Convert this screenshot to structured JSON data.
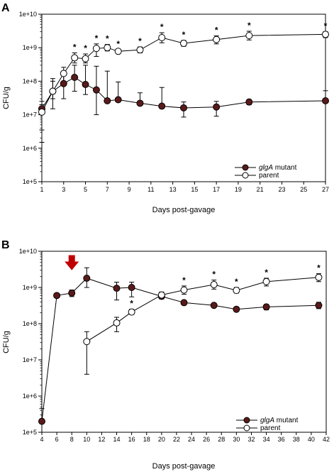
{
  "chart_data": [
    {
      "type": "line",
      "panel": "A",
      "xlabel": "Days post-gavage",
      "ylabel": "CFU/g",
      "yscale": "log",
      "xlim": [
        1,
        27
      ],
      "ylim": [
        100000,
        10000000000
      ],
      "x_ticks": [
        1,
        3,
        5,
        7,
        9,
        11,
        13,
        15,
        17,
        19,
        21,
        23,
        25,
        27
      ],
      "y_ticks": [
        "1e+5",
        "1e+6",
        "1e+7",
        "1e+8",
        "1e+9",
        "1e+10"
      ],
      "legend_position": "bottom-right",
      "grid": false,
      "series": [
        {
          "name": "glgA mutant",
          "name_italic": "glgA",
          "name_rest": " mutant",
          "marker": "filled-circle",
          "color": "#5a1a1a",
          "points": [
            {
              "x": 1,
              "y": 15000000,
              "err_lo": 1500000,
              "err_hi": 25000000
            },
            {
              "x": 2,
              "y": 50000000,
              "err_lo": 15000000,
              "err_hi": 100000000
            },
            {
              "x": 3,
              "y": 85000000,
              "err_lo": 30000000,
              "err_hi": 150000000
            },
            {
              "x": 4,
              "y": 130000000,
              "err_lo": 50000000,
              "err_hi": 300000000
            },
            {
              "x": 5,
              "y": 80000000,
              "err_lo": 40000000,
              "err_hi": 300000000
            },
            {
              "x": 6,
              "y": 55000000,
              "err_lo": 10000000,
              "err_hi": 280000000
            },
            {
              "x": 7,
              "y": 26000000,
              "err_lo": 26000000,
              "err_hi": 200000000
            },
            {
              "x": 8,
              "y": 28000000,
              "err_lo": 28000000,
              "err_hi": 95000000
            },
            {
              "x": 10,
              "y": 22000000,
              "err_lo": 22000000,
              "err_hi": 45000000
            },
            {
              "x": 12,
              "y": 18000000,
              "err_lo": 18000000,
              "err_hi": 65000000
            },
            {
              "x": 14,
              "y": 16000000,
              "err_lo": 8500000,
              "err_hi": 24000000
            },
            {
              "x": 17,
              "y": 17000000,
              "err_lo": 9000000,
              "err_hi": 25000000
            },
            {
              "x": 20,
              "y": 24000000,
              "err_lo": 20000000,
              "err_hi": 28000000
            },
            {
              "x": 27,
              "y": 26000000,
              "err_lo": 26000000,
              "err_hi": 52000000
            }
          ]
        },
        {
          "name": "parent",
          "marker": "open-circle",
          "color": "#000000",
          "points": [
            {
              "x": 1,
              "y": 12000000,
              "err_lo": 3500000,
              "err_hi": 20000000
            },
            {
              "x": 2,
              "y": 50000000,
              "err_lo": 30000000,
              "err_hi": 120000000
            },
            {
              "x": 3,
              "y": 170000000,
              "err_lo": 90000000,
              "err_hi": 260000000
            },
            {
              "x": 4,
              "y": 500000000,
              "err_lo": 350000000,
              "err_hi": 700000000
            },
            {
              "x": 5,
              "y": 470000000,
              "err_lo": 350000000,
              "err_hi": 650000000
            },
            {
              "x": 6,
              "y": 950000000,
              "err_lo": 550000000,
              "err_hi": 1300000000
            },
            {
              "x": 7,
              "y": 1000000000,
              "err_lo": 800000000,
              "err_hi": 1250000000
            },
            {
              "x": 8,
              "y": 780000000,
              "err_lo": 700000000,
              "err_hi": 880000000
            },
            {
              "x": 10,
              "y": 860000000,
              "err_lo": 700000000,
              "err_hi": 1050000000
            },
            {
              "x": 12,
              "y": 2000000000,
              "err_lo": 1400000000,
              "err_hi": 2800000000
            },
            {
              "x": 14,
              "y": 1350000000,
              "err_lo": 1100000000,
              "err_hi": 1650000000
            },
            {
              "x": 17,
              "y": 1750000000,
              "err_lo": 1300000000,
              "err_hi": 2250000000
            },
            {
              "x": 20,
              "y": 2300000000,
              "err_lo": 1700000000,
              "err_hi": 3100000000
            },
            {
              "x": 27,
              "y": 2500000000,
              "err_lo": 2000000000,
              "err_hi": 3000000000
            }
          ]
        }
      ],
      "significance": {
        "symbol": "*",
        "x": [
          4,
          5,
          6,
          7,
          8,
          10,
          12,
          14,
          17,
          20,
          27
        ]
      }
    },
    {
      "type": "line",
      "panel": "B",
      "xlabel": "Days post-gavage",
      "ylabel": "CFU/g",
      "yscale": "log",
      "xlim": [
        4,
        42
      ],
      "ylim": [
        100000,
        10000000000
      ],
      "x_ticks": [
        4,
        6,
        8,
        10,
        12,
        14,
        16,
        18,
        20,
        22,
        24,
        26,
        28,
        30,
        32,
        34,
        36,
        38,
        40,
        42
      ],
      "y_ticks": [
        "1e+5",
        "1e+6",
        "1e+7",
        "1e+8",
        "1e+9",
        "1e+10"
      ],
      "legend_position": "bottom-right",
      "grid": false,
      "arrow": {
        "x": 8,
        "color": "#c00000"
      },
      "series": [
        {
          "name": "glgA mutant",
          "name_italic": "glgA",
          "name_rest": " mutant",
          "marker": "filled-circle",
          "color": "#5a1a1a",
          "points": [
            {
              "x": 4,
              "y": 200000,
              "err_lo": 200000,
              "err_hi": 450000
            },
            {
              "x": 6,
              "y": 600000000,
              "err_lo": 560000000,
              "err_hi": 640000000
            },
            {
              "x": 8,
              "y": 700000000,
              "err_lo": 560000000,
              "err_hi": 850000000
            },
            {
              "x": 10,
              "y": 1800000000,
              "err_lo": 1000000000,
              "err_hi": 3500000000
            },
            {
              "x": 14,
              "y": 950000000,
              "err_lo": 450000000,
              "err_hi": 1400000000
            },
            {
              "x": 16,
              "y": 1000000000,
              "err_lo": 550000000,
              "err_hi": 1400000000
            },
            {
              "x": 20,
              "y": 570000000,
              "err_lo": 480000000,
              "err_hi": 650000000
            },
            {
              "x": 23,
              "y": 380000000,
              "err_lo": 350000000,
              "err_hi": 420000000
            },
            {
              "x": 27,
              "y": 320000000,
              "err_lo": 300000000,
              "err_hi": 340000000
            },
            {
              "x": 30,
              "y": 250000000,
              "err_lo": 240000000,
              "err_hi": 270000000
            },
            {
              "x": 34,
              "y": 290000000,
              "err_lo": 240000000,
              "err_hi": 340000000
            },
            {
              "x": 41,
              "y": 320000000,
              "err_lo": 260000000,
              "err_hi": 390000000
            }
          ]
        },
        {
          "name": "parent",
          "marker": "open-circle",
          "color": "#000000",
          "points": [
            {
              "x": 10,
              "y": 32000000,
              "err_lo": 4000000,
              "err_hi": 60000000
            },
            {
              "x": 14,
              "y": 105000000,
              "err_lo": 60000000,
              "err_hi": 150000000
            },
            {
              "x": 16,
              "y": 210000000,
              "err_lo": 180000000,
              "err_hi": 250000000
            },
            {
              "x": 20,
              "y": 620000000,
              "err_lo": 500000000,
              "err_hi": 750000000
            },
            {
              "x": 23,
              "y": 850000000,
              "err_lo": 650000000,
              "err_hi": 1100000000
            },
            {
              "x": 27,
              "y": 1200000000,
              "err_lo": 900000000,
              "err_hi": 1600000000
            },
            {
              "x": 30,
              "y": 830000000,
              "err_lo": 700000000,
              "err_hi": 1000000000
            },
            {
              "x": 34,
              "y": 1450000000,
              "err_lo": 1100000000,
              "err_hi": 1800000000
            },
            {
              "x": 41,
              "y": 1900000000,
              "err_lo": 1450000000,
              "err_hi": 2400000000
            }
          ]
        }
      ],
      "significance": {
        "symbol": "*",
        "x": [
          16,
          23,
          27,
          30,
          34,
          41
        ]
      }
    }
  ]
}
